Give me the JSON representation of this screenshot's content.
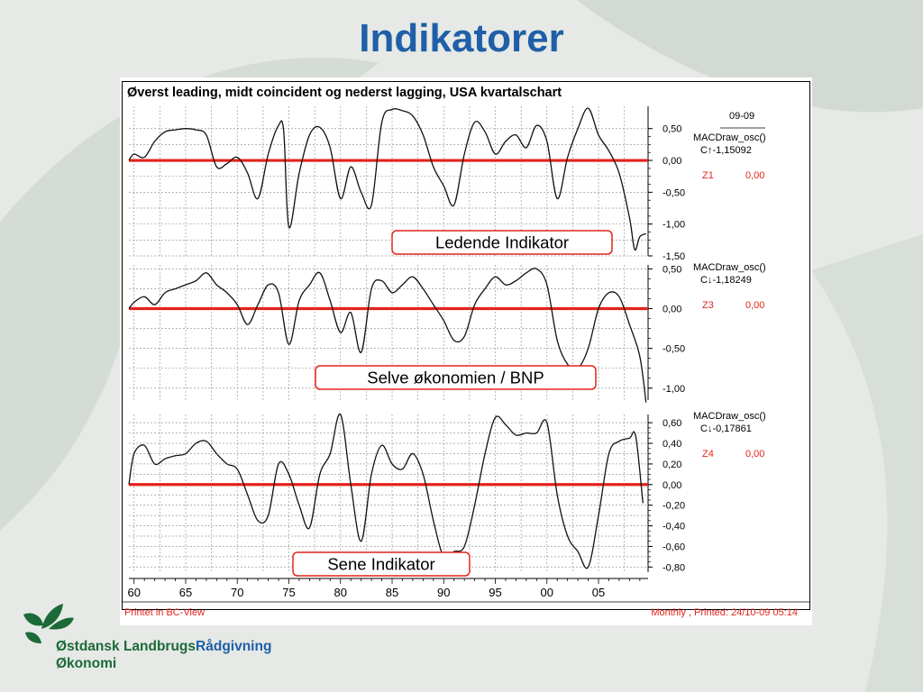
{
  "slide": {
    "title": "Indikatorer"
  },
  "chart_data": {
    "type": "line",
    "title": "Øverst leading, midt coincident og nederst lagging, USA kvartalschart",
    "x_ticks": [
      "60",
      "65",
      "70",
      "75",
      "80",
      "85",
      "90",
      "95",
      "00",
      "05"
    ],
    "xlim": [
      1959.5,
      2009.8
    ],
    "footer_left": "Printet in BC-View",
    "footer_right": "Monthly , Printed: 24/10-09 05:14",
    "header_date": "09-09",
    "panels": [
      {
        "name": "leading",
        "y_ticks": [
          "0,50",
          "0,00",
          "-0,50",
          "-1,00",
          "-1,50"
        ],
        "ylim": [
          -1.5,
          0.85
        ],
        "tick_values": [
          0.5,
          0,
          -0.5,
          -1.0,
          -1.5
        ],
        "info": {
          "label": "MACDraw_osc()",
          "value": "C↑-1,15092",
          "z_label": "Z1",
          "z_value": "0,00"
        },
        "annotation": "Ledende Indikator",
        "series": {
          "x": [
            1959.5,
            1960,
            1961,
            1962,
            1963,
            1964,
            1965,
            1966,
            1967,
            1968,
            1969,
            1970,
            1971,
            1972,
            1973,
            1974,
            1974.5,
            1975,
            1976,
            1977,
            1978,
            1979,
            1980,
            1981,
            1982,
            1983,
            1984,
            1985,
            1986,
            1987,
            1988,
            1989,
            1990,
            1991,
            1992,
            1993,
            1994,
            1995,
            1996,
            1997,
            1998,
            1999,
            2000,
            2001,
            2002,
            2003,
            2004,
            2005,
            2006,
            2007,
            2008,
            2008.5,
            2009,
            2009.6
          ],
          "y": [
            0.0,
            0.1,
            0.05,
            0.3,
            0.45,
            0.48,
            0.5,
            0.48,
            0.4,
            -0.1,
            -0.05,
            0.05,
            -0.2,
            -0.6,
            0.1,
            0.55,
            0.45,
            -1.05,
            -0.2,
            0.4,
            0.52,
            0.2,
            -0.6,
            -0.1,
            -0.5,
            -0.7,
            0.6,
            0.8,
            0.78,
            0.7,
            0.4,
            -0.1,
            -0.4,
            -0.7,
            0.1,
            0.6,
            0.45,
            0.1,
            0.3,
            0.4,
            0.2,
            0.55,
            0.3,
            -0.6,
            0.05,
            0.5,
            0.82,
            0.4,
            0.15,
            -0.2,
            -0.9,
            -1.4,
            -1.2,
            -1.15
          ]
        }
      },
      {
        "name": "coincident",
        "y_ticks": [
          "0,50",
          "0,00",
          "-0,50",
          "-1,00"
        ],
        "ylim": [
          -1.15,
          0.55
        ],
        "tick_values": [
          0.5,
          0,
          -0.5,
          -1.0
        ],
        "info": {
          "label": "MACDraw_osc()",
          "value": "C↓-1,18249",
          "z_label": "Z3",
          "z_value": "0,00"
        },
        "annotation": "Selve økonomien / BNP",
        "series": {
          "x": [
            1959.5,
            1960,
            1961,
            1962,
            1963,
            1964,
            1965,
            1966,
            1967,
            1968,
            1969,
            1970,
            1971,
            1972,
            1973,
            1974,
            1975,
            1976,
            1977,
            1978,
            1979,
            1980,
            1981,
            1982,
            1983,
            1984,
            1985,
            1986,
            1987,
            1988,
            1989,
            1990,
            1991,
            1992,
            1993,
            1994,
            1995,
            1996,
            1997,
            1998,
            1999,
            2000,
            2001,
            2002,
            2003,
            2004,
            2005,
            2006,
            2007,
            2008,
            2009,
            2009.6
          ],
          "y": [
            0.0,
            0.08,
            0.15,
            0.05,
            0.2,
            0.25,
            0.3,
            0.35,
            0.45,
            0.3,
            0.2,
            0.05,
            -0.2,
            0.05,
            0.3,
            0.2,
            -0.45,
            0.1,
            0.3,
            0.45,
            0.1,
            -0.3,
            -0.05,
            -0.55,
            0.25,
            0.35,
            0.2,
            0.3,
            0.4,
            0.25,
            0.05,
            -0.15,
            -0.4,
            -0.35,
            0.05,
            0.25,
            0.4,
            0.3,
            0.35,
            0.45,
            0.5,
            0.3,
            -0.4,
            -0.7,
            -0.75,
            -0.5,
            0.0,
            0.2,
            0.15,
            -0.2,
            -0.6,
            -1.18
          ]
        }
      },
      {
        "name": "lagging",
        "y_ticks": [
          "0,60",
          "0,40",
          "0,20",
          "0,00",
          "-0,20",
          "-0,40",
          "-0,60",
          "-0,80"
        ],
        "ylim": [
          -0.85,
          0.68
        ],
        "tick_values": [
          0.6,
          0.4,
          0.2,
          0,
          -0.2,
          -0.4,
          -0.6,
          -0.8
        ],
        "info": {
          "label": "MACDraw_osc()",
          "value": "C↓-0,17861",
          "z_label": "Z4",
          "z_value": "0,00"
        },
        "annotation": "Sene Indikator",
        "series": {
          "x": [
            1959.5,
            1960,
            1961,
            1962,
            1963,
            1964,
            1965,
            1966,
            1967,
            1968,
            1969,
            1970,
            1971,
            1972,
            1973,
            1974,
            1975,
            1976,
            1977,
            1978,
            1979,
            1980,
            1981,
            1982,
            1983,
            1984,
            1985,
            1986,
            1987,
            1988,
            1989,
            1990,
            1991,
            1992,
            1993,
            1994,
            1995,
            1996,
            1997,
            1998,
            1999,
            2000,
            2001,
            2002,
            2003,
            2004,
            2005,
            2006,
            2007,
            2008,
            2008.6,
            2009.3
          ],
          "y": [
            0.0,
            0.3,
            0.38,
            0.2,
            0.25,
            0.28,
            0.3,
            0.4,
            0.42,
            0.3,
            0.2,
            0.15,
            -0.1,
            -0.35,
            -0.3,
            0.2,
            0.1,
            -0.2,
            -0.42,
            0.1,
            0.3,
            0.68,
            0.0,
            -0.55,
            0.1,
            0.38,
            0.2,
            0.15,
            0.3,
            0.1,
            -0.35,
            -0.7,
            -0.65,
            -0.6,
            -0.2,
            0.3,
            0.65,
            0.58,
            0.48,
            0.5,
            0.5,
            0.6,
            -0.1,
            -0.5,
            -0.65,
            -0.8,
            -0.3,
            0.3,
            0.42,
            0.45,
            0.47,
            -0.18
          ]
        }
      }
    ]
  },
  "logo": {
    "line1_a": "Østdansk Landbrugs",
    "line1_b": "Rådgivning",
    "line2": "Økonomi"
  }
}
